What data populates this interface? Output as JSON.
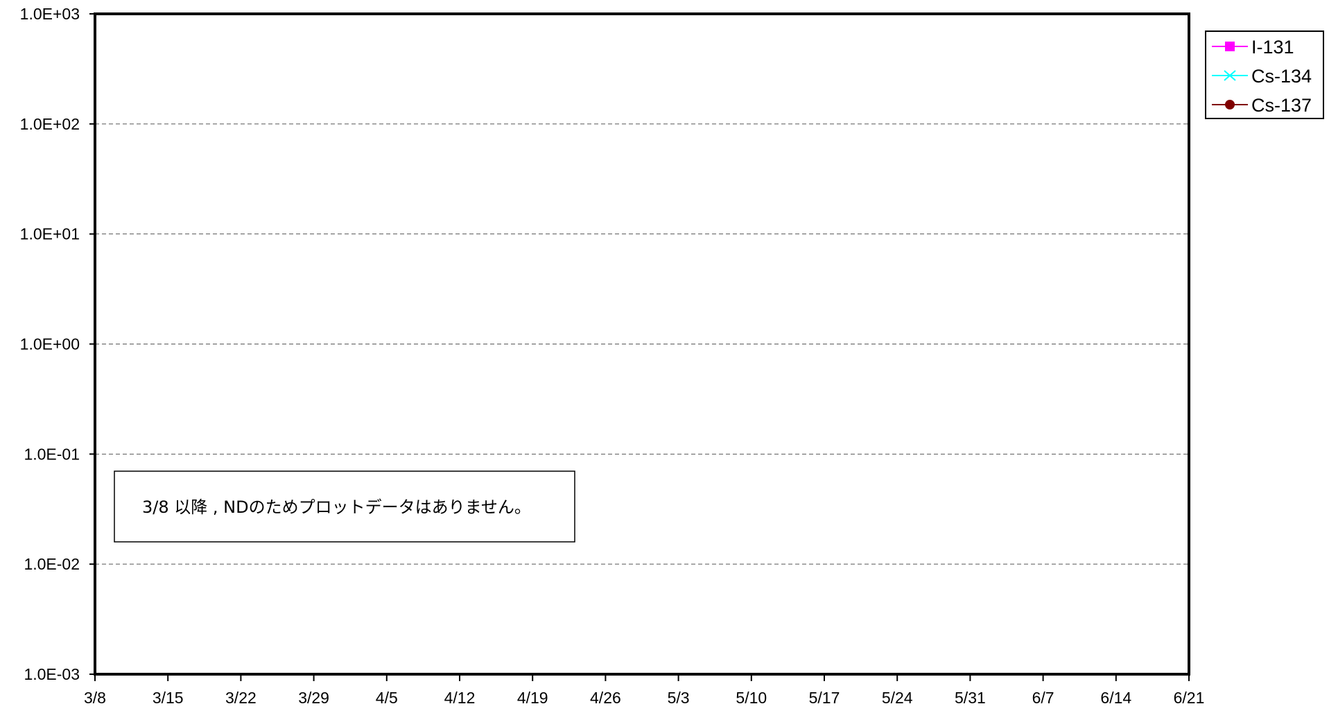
{
  "chart_data": {
    "type": "line",
    "title": "",
    "xlabel": "",
    "ylabel": "",
    "y_scale": "log",
    "ylim": [
      0.001,
      1000
    ],
    "y_ticks": [
      {
        "value": 1000,
        "label": "1.0E+03"
      },
      {
        "value": 100,
        "label": "1.0E+02"
      },
      {
        "value": 10,
        "label": "1.0E+01"
      },
      {
        "value": 1,
        "label": "1.0E+00"
      },
      {
        "value": 0.1,
        "label": "1.0E-01"
      },
      {
        "value": 0.01,
        "label": "1.0E-02"
      },
      {
        "value": 0.001,
        "label": "1.0E-03"
      }
    ],
    "x_tick_labels": [
      "3/8",
      "3/15",
      "3/22",
      "3/29",
      "4/5",
      "4/12",
      "4/19",
      "4/26",
      "5/3",
      "5/10",
      "5/17",
      "5/24",
      "5/31",
      "6/7",
      "6/14",
      "6/21"
    ],
    "grid": "horizontal dashed",
    "legend_position": "right",
    "series": [
      {
        "name": "I-131",
        "color": "#ff00ff",
        "marker": "square",
        "values": []
      },
      {
        "name": "Cs-134",
        "color": "#00ffff",
        "marker": "x",
        "values": []
      },
      {
        "name": "Cs-137",
        "color": "#800000",
        "marker": "circle",
        "values": []
      }
    ],
    "annotation": "3/8 以降 , NDのためプロットデータはありません。"
  }
}
